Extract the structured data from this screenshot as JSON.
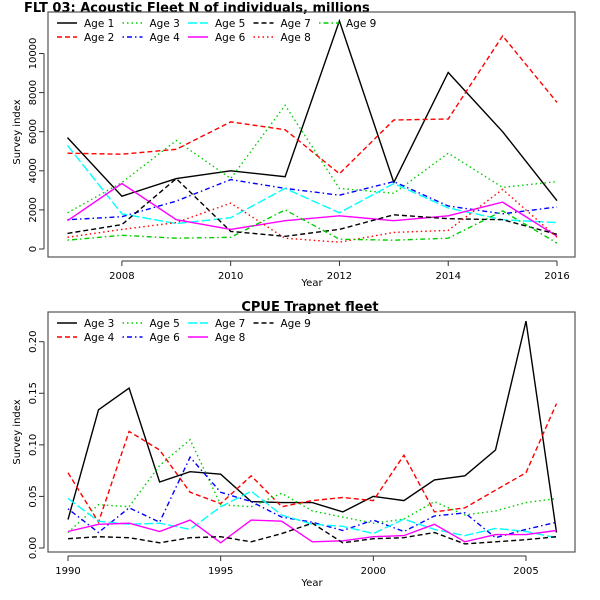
{
  "chart_data": [
    {
      "type": "line",
      "title": "FLT 03: Acoustic Fleet   N of individuals, millions",
      "xlabel": "Year",
      "ylabel": "Survey index",
      "x": [
        2007,
        2008,
        2009,
        2010,
        2011,
        2012,
        2013,
        2014,
        2015,
        2016
      ],
      "xticks": [
        2008,
        2010,
        2012,
        2014,
        2016
      ],
      "yticks": [
        0,
        2000,
        4000,
        6000,
        8000,
        10000
      ],
      "ytick_labels": [
        "0",
        "2000",
        "4000",
        "6000",
        "8000",
        "10000"
      ],
      "grid": false,
      "legend_placement": "top-left",
      "series": [
        {
          "name": "Age 1",
          "color": "#000000",
          "lty": "solid",
          "values": [
            5700,
            2700,
            3600,
            4000,
            3700,
            11670,
            3400,
            9030,
            6000,
            2470
          ]
        },
        {
          "name": "Age 2",
          "color": "#ff0000",
          "lty": "dashed",
          "values": [
            4900,
            4850,
            5100,
            6500,
            6100,
            3850,
            6600,
            6650,
            10900,
            7500
          ]
        },
        {
          "name": "Age 3",
          "color": "#00cd00",
          "lty": "dotted",
          "values": [
            1850,
            3400,
            5550,
            3600,
            7350,
            3100,
            2850,
            4900,
            3150,
            3450
          ]
        },
        {
          "name": "Age 4",
          "color": "#0000ff",
          "lty": "dotdash",
          "values": [
            1500,
            1650,
            2450,
            3550,
            3100,
            2750,
            3450,
            2200,
            1800,
            2150
          ]
        },
        {
          "name": "Age 5",
          "color": "#00ffff",
          "lty": "longdash",
          "values": [
            5300,
            1800,
            1300,
            1600,
            3100,
            1850,
            3350,
            2100,
            1500,
            1350
          ]
        },
        {
          "name": "Age 6",
          "color": "#ff00ff",
          "lty": "solid",
          "values": [
            1450,
            3350,
            1500,
            1000,
            1450,
            1700,
            1450,
            1700,
            2400,
            650
          ]
        },
        {
          "name": "Age 7",
          "color": "#000000",
          "lty": "dashed",
          "values": [
            800,
            1250,
            3600,
            900,
            650,
            1000,
            1750,
            1550,
            1500,
            750
          ]
        },
        {
          "name": "Age 8",
          "color": "#ff0000",
          "lty": "dotted",
          "values": [
            600,
            1000,
            1350,
            2350,
            550,
            350,
            850,
            950,
            3050,
            600
          ]
        },
        {
          "name": "Age 9",
          "color": "#00cd00",
          "lty": "dotdash",
          "values": [
            450,
            700,
            550,
            600,
            2000,
            500,
            450,
            550,
            1950,
            300
          ]
        }
      ]
    },
    {
      "type": "line",
      "title": "CPUE Trapnet fleet",
      "xlabel": "Year",
      "ylabel": "Survey index",
      "x": [
        1990,
        1991,
        1992,
        1993,
        1994,
        1995,
        1996,
        1997,
        1998,
        1999,
        2000,
        2001,
        2002,
        2003,
        2004,
        2005,
        2006
      ],
      "xticks": [
        1990,
        1995,
        2000,
        2005
      ],
      "yticks": [
        0,
        0.05,
        0.1,
        0.15,
        0.2
      ],
      "ytick_labels": [
        "0.00",
        "0.05",
        "0.10",
        "0.15",
        "0.20"
      ],
      "grid": false,
      "legend_placement": "top-left",
      "series": [
        {
          "name": "Age 3",
          "color": "#000000",
          "lty": "solid",
          "values": [
            0.0275,
            0.134,
            0.155,
            0.064,
            0.074,
            0.0715,
            0.045,
            0.044,
            0.044,
            0.035,
            0.05,
            0.046,
            0.066,
            0.07,
            0.095,
            0.22,
            0.015
          ]
        },
        {
          "name": "Age 4",
          "color": "#ff0000",
          "lty": "dashed",
          "values": [
            0.073,
            0.025,
            0.113,
            0.095,
            0.054,
            0.043,
            0.07,
            0.04,
            0.046,
            0.049,
            0.046,
            0.09,
            0.035,
            0.039,
            0.056,
            0.073,
            0.14
          ]
        },
        {
          "name": "Age 5",
          "color": "#00cd00",
          "lty": "dotted",
          "values": [
            0.015,
            0.042,
            0.04,
            0.08,
            0.105,
            0.042,
            0.04,
            0.053,
            0.036,
            0.03,
            0.024,
            0.028,
            0.045,
            0.032,
            0.036,
            0.044,
            0.048
          ]
        },
        {
          "name": "Age 6",
          "color": "#0000ff",
          "lty": "dotdash",
          "values": [
            0.038,
            0.015,
            0.039,
            0.025,
            0.088,
            0.054,
            0.045,
            0.03,
            0.025,
            0.017,
            0.027,
            0.016,
            0.031,
            0.034,
            0.01,
            0.018,
            0.025
          ]
        },
        {
          "name": "Age 7",
          "color": "#00ffff",
          "lty": "longdash",
          "values": [
            0.048,
            0.026,
            0.023,
            0.024,
            0.018,
            0.04,
            0.055,
            0.032,
            0.023,
            0.021,
            0.014,
            0.028,
            0.018,
            0.012,
            0.019,
            0.016,
            0.01
          ]
        },
        {
          "name": "Age 8",
          "color": "#ff00ff",
          "lty": "solid",
          "values": [
            0.016,
            0.023,
            0.024,
            0.016,
            0.027,
            0.005,
            0.027,
            0.026,
            0.006,
            0.007,
            0.011,
            0.012,
            0.023,
            0.006,
            0.013,
            0.013,
            0.017
          ]
        },
        {
          "name": "Age 9",
          "color": "#000000",
          "lty": "dashed",
          "values": [
            0.009,
            0.011,
            0.01,
            0.005,
            0.01,
            0.011,
            0.006,
            0.014,
            0.024,
            0.005,
            0.009,
            0.01,
            0.015,
            0.004,
            0.006,
            0.008,
            0.011
          ]
        }
      ]
    }
  ]
}
